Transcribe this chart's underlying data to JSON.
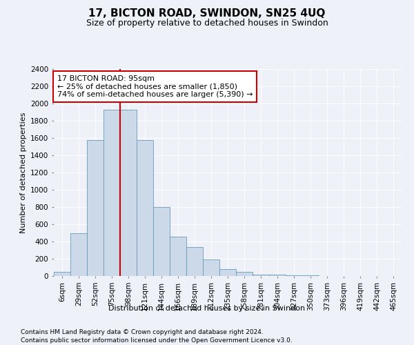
{
  "title": "17, BICTON ROAD, SWINDON, SN25 4UQ",
  "subtitle": "Size of property relative to detached houses in Swindon",
  "xlabel": "Distribution of detached houses by size in Swindon",
  "ylabel": "Number of detached properties",
  "footnote1": "Contains HM Land Registry data © Crown copyright and database right 2024.",
  "footnote2": "Contains public sector information licensed under the Open Government Licence v3.0.",
  "annotation_title": "17 BICTON ROAD: 95sqm",
  "annotation_line1": "← 25% of detached houses are smaller (1,850)",
  "annotation_line2": "74% of semi-detached houses are larger (5,390) →",
  "bar_color": "#ccd9e8",
  "bar_edge_color": "#6699bb",
  "vline_color": "#cc0000",
  "annotation_box_facecolor": "#ffffff",
  "annotation_box_edgecolor": "#cc0000",
  "categories": [
    "6sqm",
    "29sqm",
    "52sqm",
    "75sqm",
    "98sqm",
    "121sqm",
    "144sqm",
    "166sqm",
    "189sqm",
    "212sqm",
    "235sqm",
    "258sqm",
    "281sqm",
    "304sqm",
    "327sqm",
    "350sqm",
    "373sqm",
    "396sqm",
    "419sqm",
    "442sqm",
    "465sqm"
  ],
  "values": [
    50,
    500,
    1580,
    1930,
    1930,
    1580,
    800,
    460,
    340,
    190,
    80,
    50,
    20,
    15,
    5,
    5,
    0,
    0,
    0,
    0,
    0
  ],
  "vline_position": 3.5,
  "ylim": [
    0,
    2400
  ],
  "yticks": [
    0,
    200,
    400,
    600,
    800,
    1000,
    1200,
    1400,
    1600,
    1800,
    2000,
    2200,
    2400
  ],
  "title_fontsize": 11,
  "subtitle_fontsize": 9,
  "ylabel_fontsize": 8,
  "xlabel_fontsize": 8,
  "tick_fontsize": 7.5,
  "footnote_fontsize": 6.5,
  "annotation_fontsize": 8
}
